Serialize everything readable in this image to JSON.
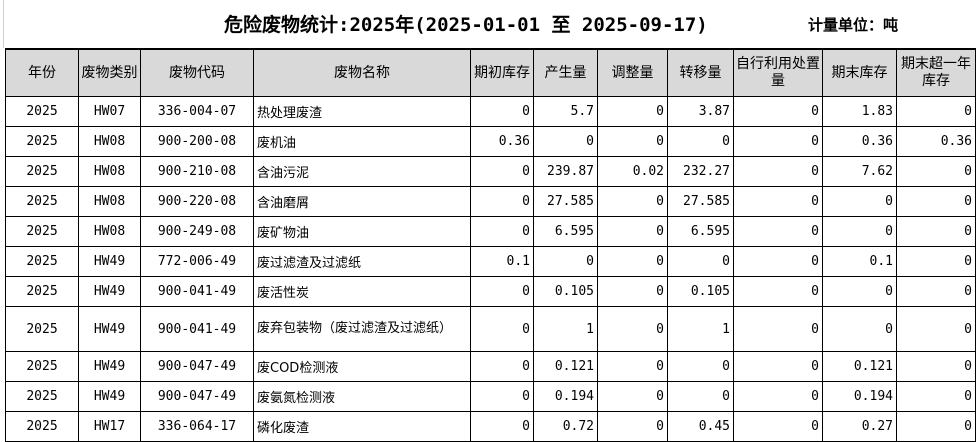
{
  "title": "危险废物统计:2025年(2025-01-01 至 2025-09-17)",
  "unit": "计量单位：吨",
  "columns": [
    "年份",
    "废物类别",
    "废物代码",
    "废物名称",
    "期初库存",
    "产生量",
    "调整量",
    "转移量",
    "自行利用处置量",
    "期末库存",
    "期末超一年库存"
  ],
  "rows": [
    [
      "2025",
      "HW07",
      "336-004-07",
      "热处理废渣",
      "0",
      "5.7",
      "0",
      "3.87",
      "0",
      "1.83",
      "0"
    ],
    [
      "2025",
      "HW08",
      "900-200-08",
      "废机油",
      "0.36",
      "0",
      "0",
      "0",
      "0",
      "0.36",
      "0.36"
    ],
    [
      "2025",
      "HW08",
      "900-210-08",
      "含油污泥",
      "0",
      "239.87",
      "0.02",
      "232.27",
      "0",
      "7.62",
      "0"
    ],
    [
      "2025",
      "HW08",
      "900-220-08",
      "含油磨屑",
      "0",
      "27.585",
      "0",
      "27.585",
      "0",
      "0",
      "0"
    ],
    [
      "2025",
      "HW08",
      "900-249-08",
      "废矿物油",
      "0",
      "6.595",
      "0",
      "6.595",
      "0",
      "0",
      "0"
    ],
    [
      "2025",
      "HW49",
      "772-006-49",
      "废过滤渣及过滤纸",
      "0.1",
      "0",
      "0",
      "0",
      "0",
      "0.1",
      "0"
    ],
    [
      "2025",
      "HW49",
      "900-041-49",
      "废活性炭",
      "0",
      "0.105",
      "0",
      "0.105",
      "0",
      "0",
      "0"
    ],
    [
      "2025",
      "HW49",
      "900-041-49",
      "废弃包装物（废过滤渣及过滤纸）",
      "0",
      "1",
      "0",
      "1",
      "0",
      "0",
      "0"
    ],
    [
      "2025",
      "HW49",
      "900-047-49",
      "废COD检测液",
      "0",
      "0.121",
      "0",
      "0",
      "0",
      "0.121",
      "0"
    ],
    [
      "2025",
      "HW49",
      "900-047-49",
      "废氨氮检测液",
      "0",
      "0.194",
      "0",
      "0",
      "0",
      "0.194",
      "0"
    ],
    [
      "2025",
      "HW17",
      "336-064-17",
      "磷化废渣",
      "0",
      "0.72",
      "0",
      "0.45",
      "0",
      "0.27",
      "0"
    ]
  ]
}
